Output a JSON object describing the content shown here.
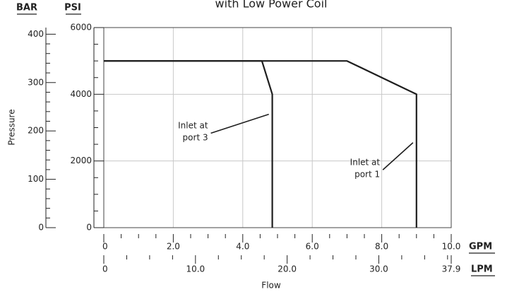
{
  "chart_data": {
    "type": "line",
    "title": "with Low Power Coil",
    "xlabel": "Flow",
    "ylabel": "Pressure",
    "grid": true,
    "x_axes": [
      {
        "unit": "GPM",
        "range": [
          0,
          10
        ],
        "ticks": [
          "0",
          "2.0",
          "4.0",
          "6.0",
          "8.0",
          "10.0"
        ],
        "tick_values": [
          0,
          2,
          4,
          6,
          8,
          10
        ],
        "minor_step": 0.5
      },
      {
        "unit": "LPM",
        "range": [
          0,
          37.9
        ],
        "ticks": [
          "0",
          "10.0",
          "20.0",
          "30.0",
          "37.9"
        ],
        "tick_values": [
          0,
          10,
          20,
          30,
          37.9
        ],
        "minor_step": 2.5
      }
    ],
    "y_axes": [
      {
        "unit": "PSI",
        "range": [
          0,
          6000
        ],
        "ticks": [
          "0",
          "2000",
          "4000",
          "6000"
        ],
        "tick_values": [
          0,
          2000,
          4000,
          6000
        ],
        "minor_step": 500
      },
      {
        "unit": "BAR",
        "range": [
          0,
          413.7
        ],
        "ticks": [
          "0",
          "100",
          "200",
          "300",
          "400"
        ],
        "tick_values": [
          0,
          100,
          200,
          300,
          400
        ],
        "minor_step": 20
      }
    ],
    "series": [
      {
        "x": [
          0,
          4.55,
          4.85,
          4.85
        ],
        "y": [
          5000,
          5000,
          4000,
          0
        ],
        "annotation": {
          "lines": [
            "Inlet at",
            "port 3"
          ],
          "text_at": [
            3.0,
            3050
          ],
          "arrow_to": [
            4.75,
            3400
          ]
        }
      },
      {
        "x": [
          0,
          7.0,
          9.0,
          9.0
        ],
        "y": [
          5000,
          5000,
          4000,
          0
        ],
        "annotation": {
          "lines": [
            "Inlet at",
            "port 1"
          ],
          "text_at": [
            7.95,
            1950
          ],
          "arrow_to": [
            8.9,
            2550
          ]
        }
      }
    ]
  }
}
